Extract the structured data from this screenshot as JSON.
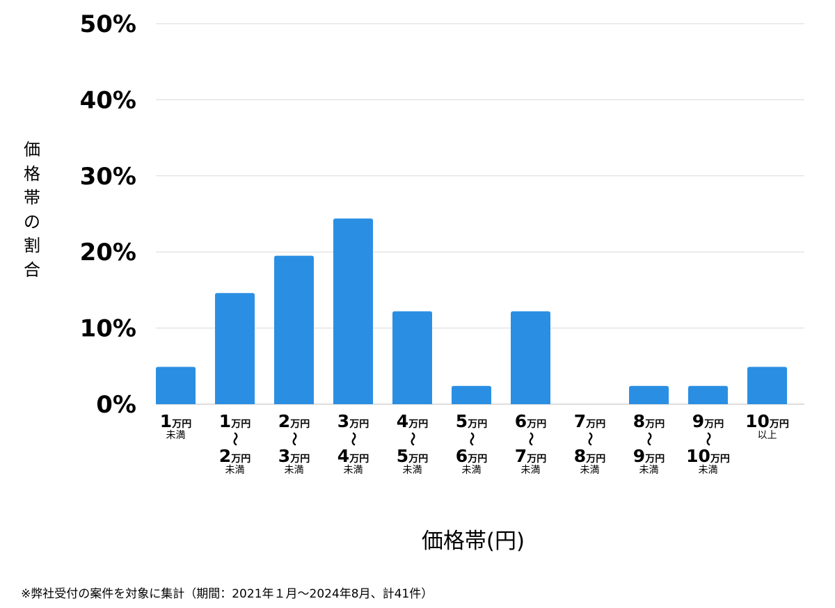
{
  "chart_data": {
    "type": "bar",
    "ylabel": "価格帯の割合",
    "xlabel": "価格帯(円)",
    "ylim": [
      0,
      50
    ],
    "yticks": [
      "0%",
      "10%",
      "20%",
      "30%",
      "40%",
      "50%"
    ],
    "grid": true,
    "bar_color": "#2a8fe3",
    "categories": [
      {
        "from_num": "1",
        "from_unit": "万円",
        "suffix": "未満"
      },
      {
        "from_num": "1",
        "from_unit": "万円",
        "tilde": "〜",
        "to_num": "2",
        "to_unit": "万円",
        "suffix": "未満"
      },
      {
        "from_num": "2",
        "from_unit": "万円",
        "tilde": "〜",
        "to_num": "3",
        "to_unit": "万円",
        "suffix": "未満"
      },
      {
        "from_num": "3",
        "from_unit": "万円",
        "tilde": "〜",
        "to_num": "4",
        "to_unit": "万円",
        "suffix": "未満"
      },
      {
        "from_num": "4",
        "from_unit": "万円",
        "tilde": "〜",
        "to_num": "5",
        "to_unit": "万円",
        "suffix": "未満"
      },
      {
        "from_num": "5",
        "from_unit": "万円",
        "tilde": "〜",
        "to_num": "6",
        "to_unit": "万円",
        "suffix": "未満"
      },
      {
        "from_num": "6",
        "from_unit": "万円",
        "tilde": "〜",
        "to_num": "7",
        "to_unit": "万円",
        "suffix": "未満"
      },
      {
        "from_num": "7",
        "from_unit": "万円",
        "tilde": "〜",
        "to_num": "8",
        "to_unit": "万円",
        "suffix": "未満"
      },
      {
        "from_num": "8",
        "from_unit": "万円",
        "tilde": "〜",
        "to_num": "9",
        "to_unit": "万円",
        "suffix": "未満"
      },
      {
        "from_num": "9",
        "from_unit": "万円",
        "tilde": "〜",
        "to_num": "10",
        "to_unit": "万円",
        "suffix": "未満"
      },
      {
        "from_num": "10",
        "from_unit": "万円",
        "suffix": "以上"
      }
    ],
    "values": [
      4.9,
      14.6,
      19.5,
      24.4,
      12.2,
      2.4,
      12.2,
      0,
      2.4,
      2.4,
      4.9
    ]
  },
  "footnote": "※弊社受付の案件を対象に集計（期間：2021年１月〜2024年8月、計41件）"
}
